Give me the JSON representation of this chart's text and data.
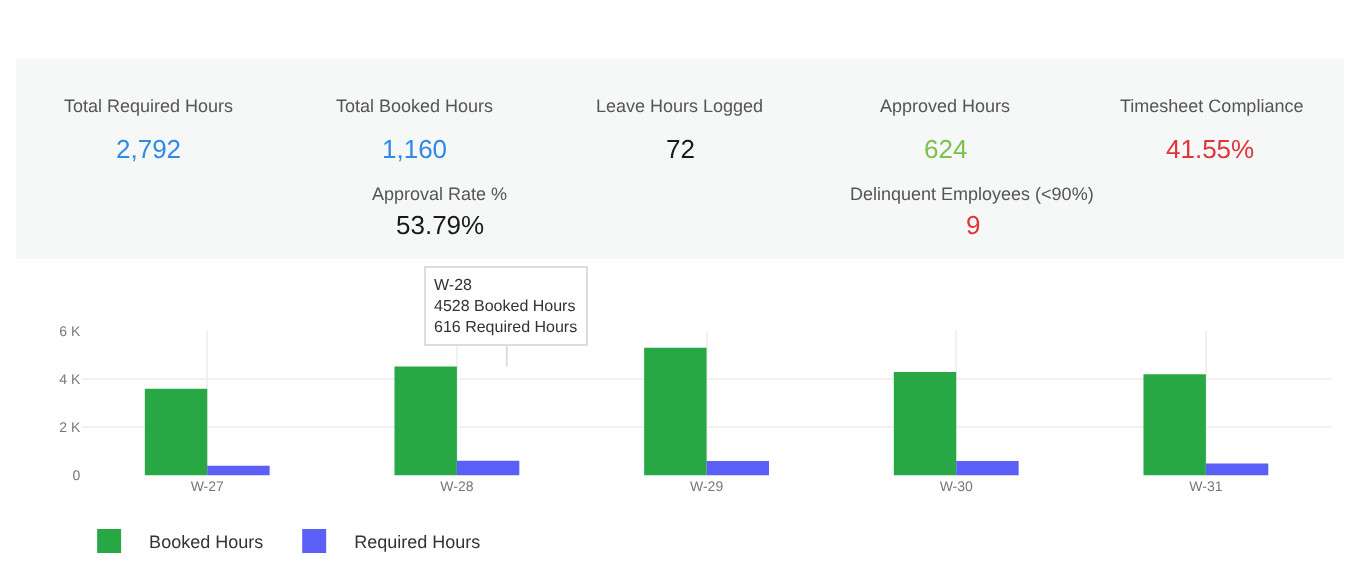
{
  "chart_data": [
    {
      "type": "other",
      "categories": [
        "Total Required Hours",
        "Total Booked Hours",
        "Leave Hours Logged",
        "Approved Hours",
        "Timesheet Compliance",
        "Approval Rate %",
        "Delinquent Employees (<90%)"
      ],
      "value_labels": [
        "2,792",
        "1,160",
        "72",
        "624",
        "41.55%",
        "53.79%",
        "9"
      ]
    },
    {
      "type": "bar",
      "categories": [
        "W-27",
        "W-28",
        "W-29",
        "W-30",
        "W-31"
      ],
      "series": [
        {
          "name": "Booked Hours",
          "color": "#28a745",
          "values": [
            3600,
            4528,
            5300,
            4300,
            4200
          ]
        },
        {
          "name": "Required Hours",
          "color": "#5b5ff8",
          "values": [
            400,
            616,
            600,
            600,
            500
          ]
        }
      ],
      "ylim": [
        0,
        6000
      ],
      "yticks": [
        0,
        {
          "value": 2000,
          "label": "2 K"
        },
        {
          "value": 4000,
          "label": "4 K"
        },
        {
          "value": 6000,
          "label": "6 K"
        }
      ],
      "annotations": [
        {
          "text": "W-28\n4528 Booked Hours\n616 Required Hours",
          "x": "W-28",
          "y": 4528
        }
      ],
      "grid": true,
      "legend": "bottom left"
    }
  ]
}
